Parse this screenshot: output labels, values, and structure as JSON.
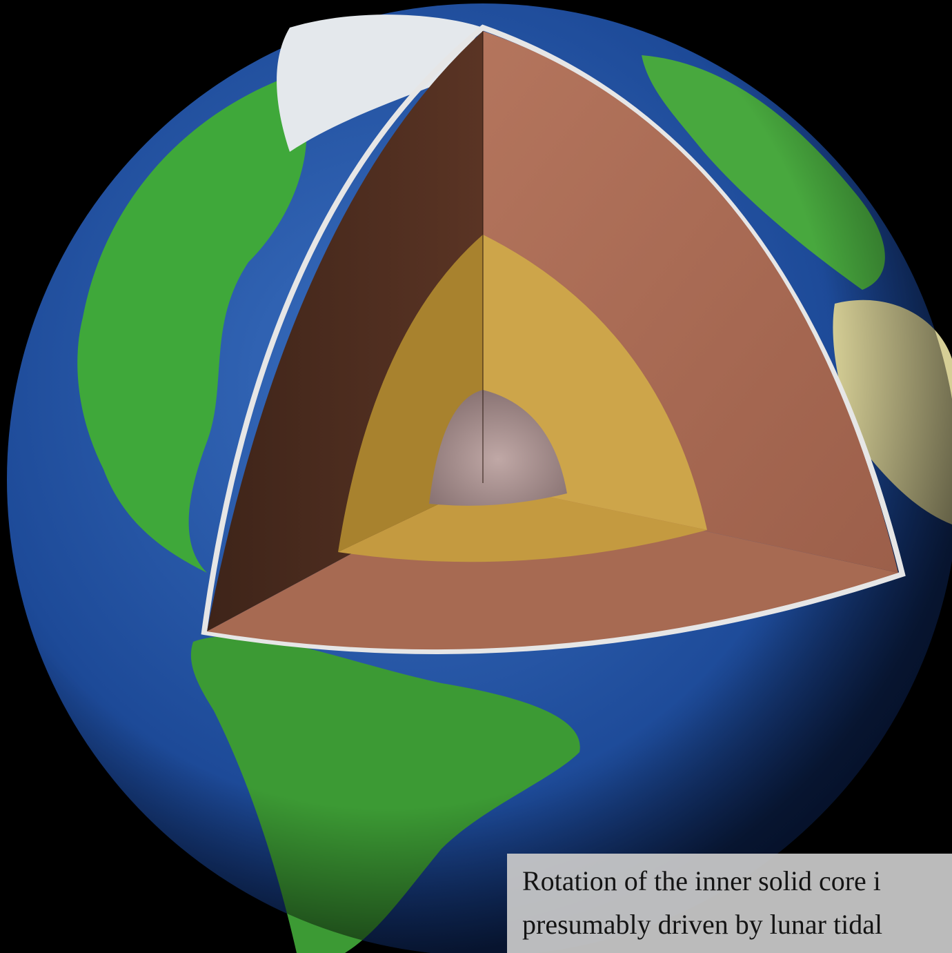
{
  "caption": {
    "lines": [
      "Rotation of the inner solid core i",
      "presumably driven by lunar tidal"
    ]
  }
}
